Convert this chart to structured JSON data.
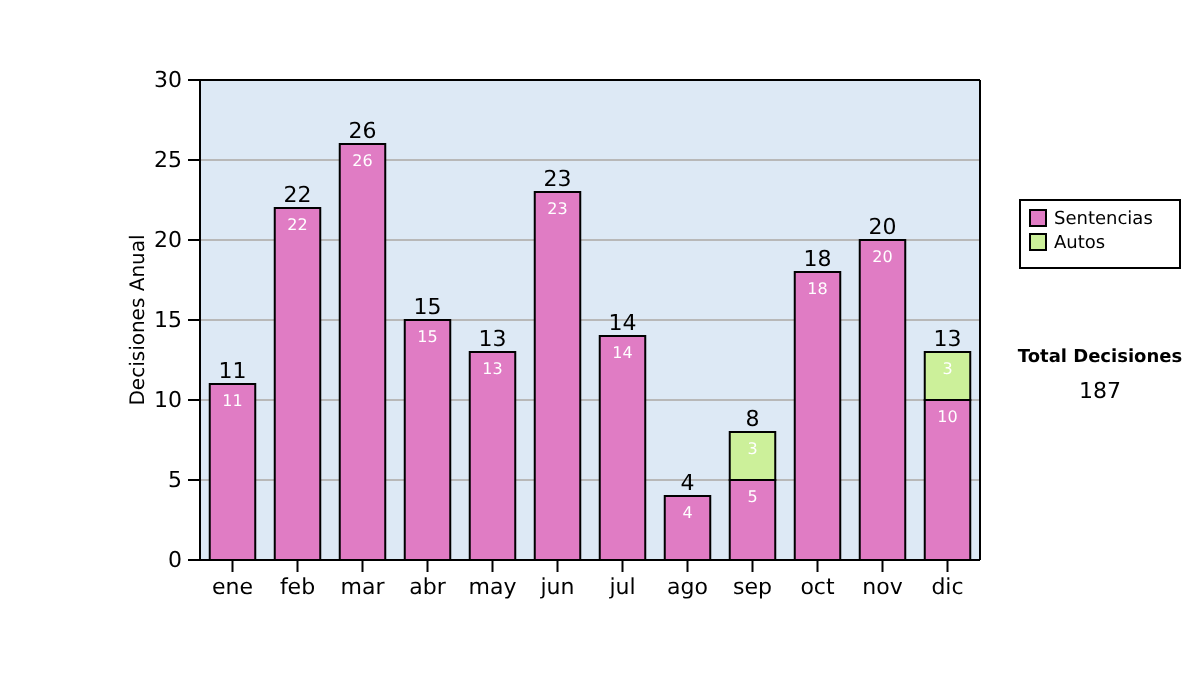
{
  "chart_data": {
    "type": "bar",
    "ylabel": "Decisiones Anual",
    "categories": [
      "ene",
      "feb",
      "mar",
      "abr",
      "may",
      "jun",
      "jul",
      "ago",
      "sep",
      "oct",
      "nov",
      "dic"
    ],
    "series": [
      {
        "name": "Sentencias",
        "color": "#e07cc4",
        "values": [
          11,
          22,
          26,
          15,
          13,
          23,
          14,
          4,
          5,
          18,
          20,
          10
        ]
      },
      {
        "name": "Autos",
        "color": "#ccf09a",
        "values": [
          null,
          null,
          null,
          null,
          null,
          null,
          null,
          null,
          3,
          null,
          null,
          3
        ]
      }
    ],
    "stacked": true,
    "data_labels": true,
    "totals": [
      "11",
      "22",
      "26",
      "15",
      "13",
      "23",
      "14",
      "4",
      "8",
      "18",
      "20",
      "13"
    ],
    "ylim": [
      0,
      30
    ],
    "yticks": [
      0,
      5,
      10,
      15,
      20,
      25,
      30
    ],
    "grid": "y",
    "legend": "right",
    "annotations": [
      "Total Decisiones",
      "187"
    ]
  }
}
